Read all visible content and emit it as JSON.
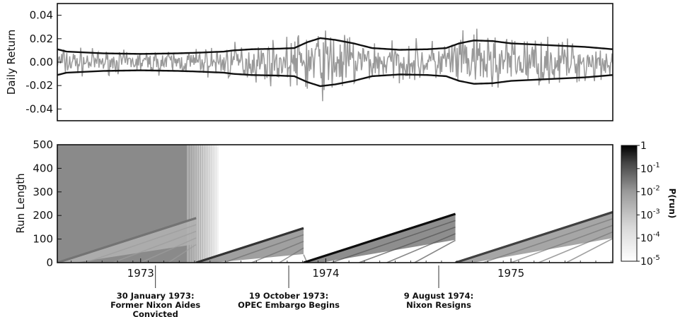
{
  "chart_data": [
    {
      "type": "line",
      "ylabel": "Daily Return",
      "ylim": [
        -0.05,
        0.05
      ],
      "yticks": [
        "0.04",
        "0.02",
        "0.00",
        "-0.02",
        "-0.04"
      ],
      "ytick_values": [
        0.04,
        0.02,
        0.0,
        -0.02,
        -0.04
      ],
      "x_range_years": [
        1972.55,
        1975.55
      ],
      "grid": false,
      "series": [
        {
          "role": "daily returns",
          "color": "#999999",
          "envelope": [
            [
              1972.55,
              0.01
            ],
            [
              1972.8,
              0.007
            ],
            [
              1973.0,
              0.007
            ],
            [
              1973.2,
              0.008
            ],
            [
              1973.35,
              0.009
            ],
            [
              1973.5,
              0.012
            ],
            [
              1973.75,
              0.013
            ],
            [
              1973.85,
              0.018
            ],
            [
              1973.93,
              0.024
            ],
            [
              1974.1,
              0.02
            ],
            [
              1974.25,
              0.014
            ],
            [
              1974.4,
              0.012
            ],
            [
              1974.55,
              0.013
            ],
            [
              1974.7,
              0.017
            ],
            [
              1974.85,
              0.02
            ],
            [
              1975.0,
              0.017
            ],
            [
              1975.2,
              0.015
            ],
            [
              1975.4,
              0.013
            ],
            [
              1975.55,
              0.012
            ]
          ]
        },
        {
          "role": "volatility band (+)",
          "color": "#111111",
          "points": [
            [
              1972.55,
              0.011
            ],
            [
              1972.6,
              0.009
            ],
            [
              1972.8,
              0.0075
            ],
            [
              1973.0,
              0.007
            ],
            [
              1973.2,
              0.0075
            ],
            [
              1973.3,
              0.008
            ],
            [
              1973.45,
              0.009
            ],
            [
              1973.5,
              0.01
            ],
            [
              1973.6,
              0.011
            ],
            [
              1973.75,
              0.0115
            ],
            [
              1973.83,
              0.012
            ],
            [
              1973.9,
              0.017
            ],
            [
              1973.97,
              0.0205
            ],
            [
              1974.05,
              0.019
            ],
            [
              1974.15,
              0.016
            ],
            [
              1974.25,
              0.012
            ],
            [
              1974.4,
              0.0105
            ],
            [
              1974.55,
              0.011
            ],
            [
              1974.65,
              0.012
            ],
            [
              1974.72,
              0.016
            ],
            [
              1974.8,
              0.0185
            ],
            [
              1974.9,
              0.018
            ],
            [
              1975.0,
              0.016
            ],
            [
              1975.2,
              0.0145
            ],
            [
              1975.4,
              0.013
            ],
            [
              1975.55,
              0.011
            ]
          ]
        },
        {
          "role": "volatility band (-)",
          "color": "#111111",
          "points": [
            [
              1972.55,
              -0.011
            ],
            [
              1972.6,
              -0.009
            ],
            [
              1972.8,
              -0.0075
            ],
            [
              1973.0,
              -0.007
            ],
            [
              1973.2,
              -0.0075
            ],
            [
              1973.3,
              -0.008
            ],
            [
              1973.45,
              -0.009
            ],
            [
              1973.5,
              -0.01
            ],
            [
              1973.6,
              -0.011
            ],
            [
              1973.75,
              -0.0115
            ],
            [
              1973.83,
              -0.012
            ],
            [
              1973.9,
              -0.017
            ],
            [
              1973.97,
              -0.0205
            ],
            [
              1974.05,
              -0.019
            ],
            [
              1974.15,
              -0.016
            ],
            [
              1974.25,
              -0.012
            ],
            [
              1974.4,
              -0.0105
            ],
            [
              1974.55,
              -0.011
            ],
            [
              1974.65,
              -0.012
            ],
            [
              1974.72,
              -0.016
            ],
            [
              1974.8,
              -0.0185
            ],
            [
              1974.9,
              -0.018
            ],
            [
              1975.0,
              -0.016
            ],
            [
              1975.2,
              -0.0145
            ],
            [
              1975.4,
              -0.013
            ],
            [
              1975.55,
              -0.011
            ]
          ]
        }
      ]
    },
    {
      "type": "heatmap",
      "ylabel": "Run Length",
      "ylim": [
        0,
        500
      ],
      "yticks": [
        "500",
        "400",
        "300",
        "200",
        "100",
        "0"
      ],
      "ytick_values": [
        500,
        400,
        300,
        200,
        100,
        0
      ],
      "x_range_years": [
        1972.55,
        1975.55
      ],
      "xticks": [
        "1973",
        "1974",
        "1975"
      ],
      "xtick_values": [
        1973.0,
        1974.0,
        1975.0
      ],
      "colorbar": {
        "label": "P(run)",
        "scale": "log",
        "range": [
          1e-05,
          1
        ],
        "tick_bases": [
          "1",
          "10",
          "10",
          "10",
          "10",
          "10"
        ],
        "tick_exponents": [
          "",
          "-1",
          "-2",
          "-3",
          "-4",
          "-5"
        ],
        "tick_values": [
          1,
          0.1,
          0.01,
          0.001,
          0.0001,
          1e-05
        ]
      },
      "segments": [
        {
          "start": 1972.55,
          "end": 1973.3,
          "shade": 0.55
        },
        {
          "start": 1973.3,
          "end": 1973.88,
          "shade": 0.8
        },
        {
          "start": 1973.88,
          "end": 1974.7,
          "shade": 0.95
        },
        {
          "start": 1974.7,
          "end": 1975.55,
          "shade": 0.75
        }
      ],
      "annotations": [
        {
          "x": 1973.08,
          "lines": [
            "30 January 1973:",
            "Former Nixon Aides",
            "Convicted"
          ]
        },
        {
          "x": 1973.8,
          "lines": [
            "19 October 1973:",
            "OPEC Embargo Begins"
          ]
        },
        {
          "x": 1974.61,
          "lines": [
            "9 August 1974:",
            "Nixon Resigns"
          ]
        }
      ]
    }
  ]
}
